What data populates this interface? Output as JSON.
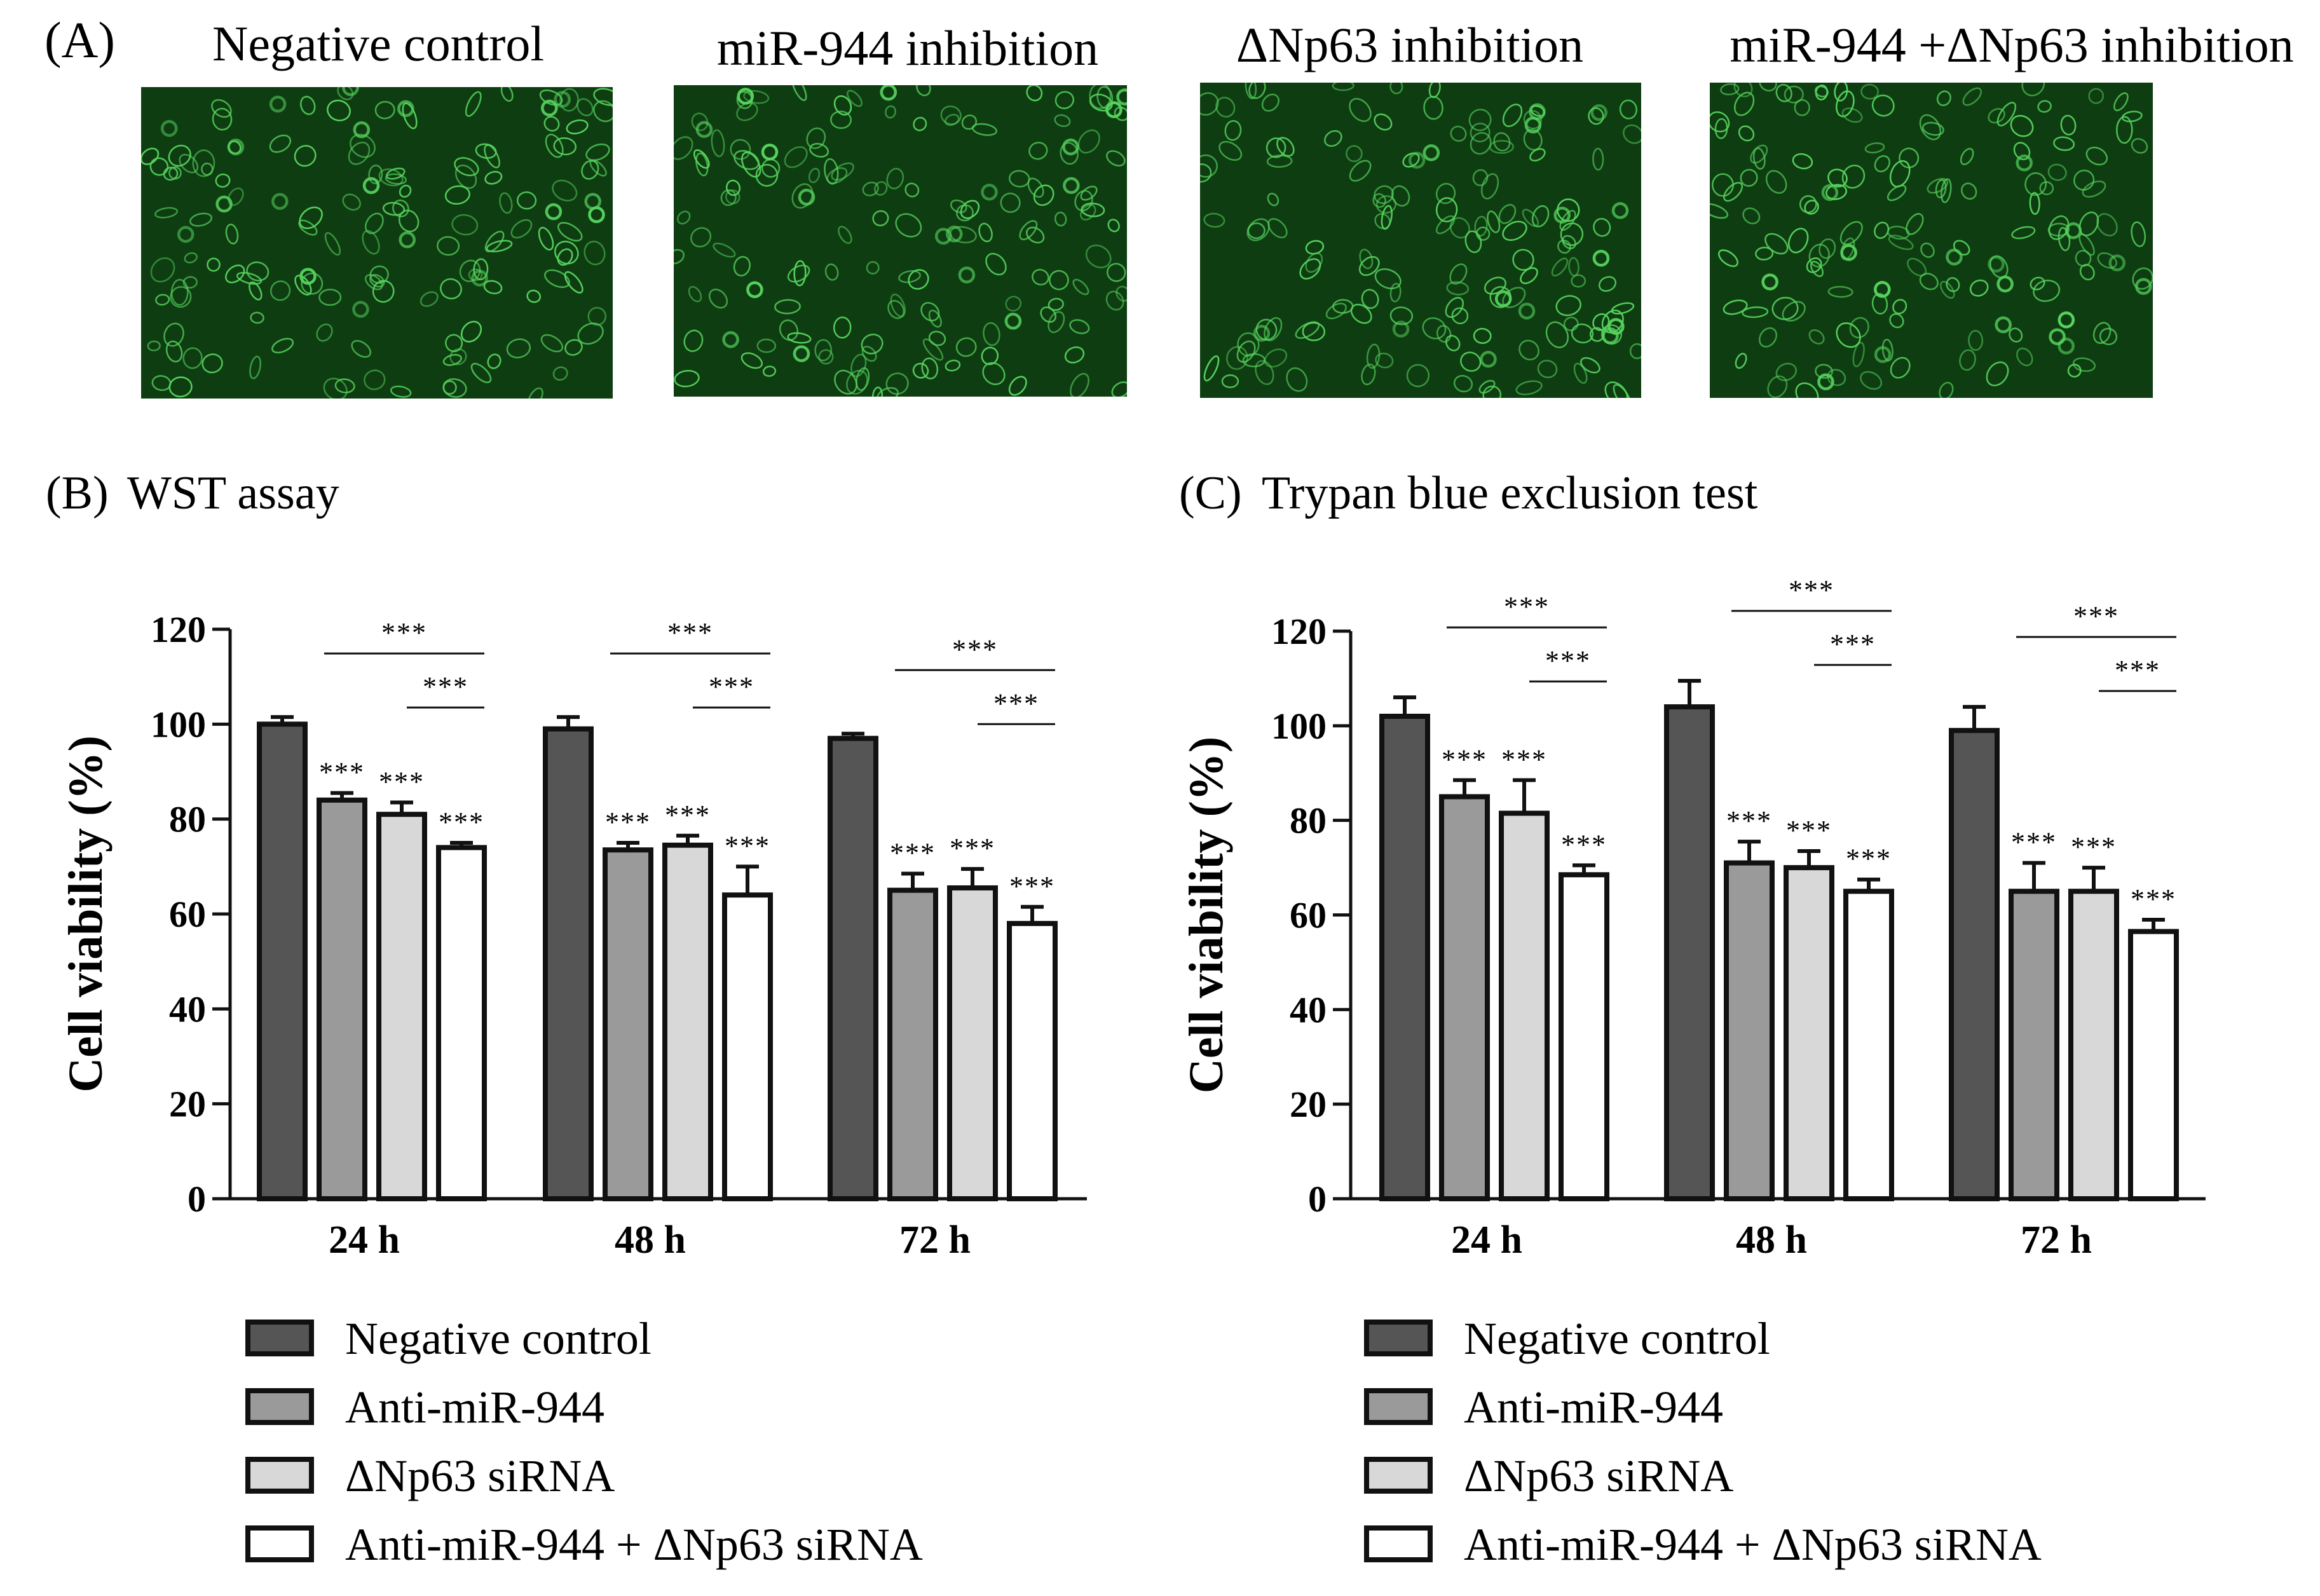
{
  "panel_a": {
    "label": "(A)",
    "images": [
      {
        "title": "Negative control",
        "content": "green fluorescence micrograph of cells"
      },
      {
        "title": "miR-944 inhibition",
        "content": "green fluorescence micrograph of cells"
      },
      {
        "title": "ΔNp63 inhibition",
        "content": "green fluorescence micrograph of cells"
      },
      {
        "title": "miR-944 +ΔNp63 inhibition",
        "content": "green fluorescence micrograph of cells"
      }
    ],
    "colors": {
      "background": "#0f3d12",
      "cell": "#56d35e"
    }
  },
  "legend_items": [
    {
      "label": "Negative control",
      "color": "#555555"
    },
    {
      "label": "Anti-miR-944",
      "color": "#9a9a9a"
    },
    {
      "label": "ΔNp63 siRNA",
      "color": "#d8d8d8"
    },
    {
      "label": "Anti-miR-944 + ΔNp63 siRNA",
      "color": "#ffffff"
    }
  ],
  "chart_data": [
    {
      "panel_label": "(B)",
      "title": "WST assay",
      "type": "bar",
      "categories": [
        "24 h",
        "48 h",
        "72 h"
      ],
      "ylabel": "Cell viability (%)",
      "ylim": [
        0,
        120
      ],
      "yticks": [
        0,
        20,
        40,
        60,
        80,
        100,
        120
      ],
      "grid": false,
      "legend_position": "bottom",
      "series": [
        {
          "name": "Negative control",
          "values": [
            100,
            99,
            97
          ],
          "errors": [
            1.5,
            2.5,
            1.0
          ]
        },
        {
          "name": "Anti-miR-944",
          "values": [
            84,
            73.5,
            65
          ],
          "errors": [
            1.5,
            1.5,
            3.5
          ]
        },
        {
          "name": "ΔNp63 siRNA",
          "values": [
            81,
            74.5,
            65.5
          ],
          "errors": [
            2.5,
            2.0,
            4.0
          ]
        },
        {
          "name": "Anti-miR-944 + ΔNp63 siRNA",
          "values": [
            74,
            64,
            58
          ],
          "errors": [
            1.0,
            6.0,
            3.5
          ]
        }
      ],
      "bar_stars": [
        [
          "",
          "***",
          "***",
          "***"
        ],
        [
          "",
          "***",
          "***",
          "***"
        ],
        [
          "",
          "***",
          "***",
          "***"
        ]
      ],
      "brackets": [
        [
          "***",
          "***"
        ],
        [
          "***",
          "***"
        ],
        [
          "***",
          "***"
        ]
      ]
    },
    {
      "panel_label": "(C)",
      "title": "Trypan blue exclusion test",
      "type": "bar",
      "categories": [
        "24 h",
        "48 h",
        "72 h"
      ],
      "ylabel": "Cell viability (%)",
      "ylim": [
        0,
        120
      ],
      "yticks": [
        0,
        20,
        40,
        60,
        80,
        100,
        120
      ],
      "grid": false,
      "legend_position": "bottom",
      "series": [
        {
          "name": "Negative control",
          "values": [
            102,
            104,
            99
          ],
          "errors": [
            4.0,
            5.5,
            5.0
          ]
        },
        {
          "name": "Anti-miR-944",
          "values": [
            85,
            71,
            65
          ],
          "errors": [
            3.5,
            4.5,
            6.0
          ]
        },
        {
          "name": "ΔNp63 siRNA",
          "values": [
            81.5,
            70,
            65
          ],
          "errors": [
            7.0,
            3.5,
            5.0
          ]
        },
        {
          "name": "Anti-miR-944 + ΔNp63 siRNA",
          "values": [
            68.5,
            65,
            56.5
          ],
          "errors": [
            2.0,
            2.5,
            2.5
          ]
        }
      ],
      "bar_stars": [
        [
          "",
          "***",
          "***",
          "***"
        ],
        [
          "",
          "***",
          "***",
          "***"
        ],
        [
          "",
          "***",
          "***",
          "***"
        ]
      ],
      "brackets": [
        [
          "***",
          "***"
        ],
        [
          "***",
          "***"
        ],
        [
          "***",
          "***"
        ]
      ]
    }
  ]
}
